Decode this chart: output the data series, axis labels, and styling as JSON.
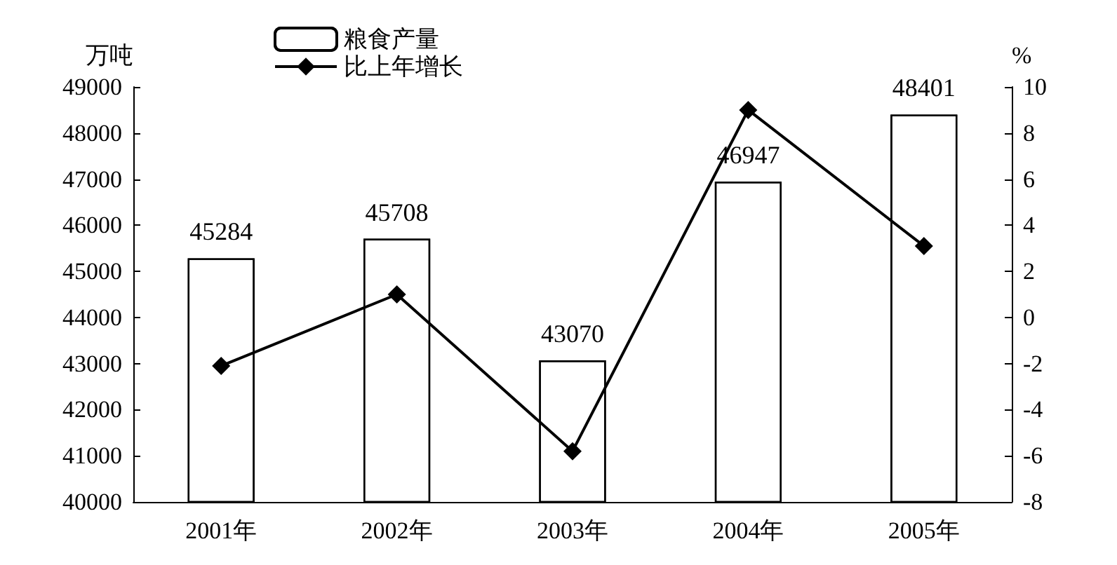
{
  "chart_data": {
    "type": "bar",
    "categories": [
      "2001年",
      "2002年",
      "2003年",
      "2004年",
      "2005年"
    ],
    "ylabel": "万吨",
    "y2label": "%",
    "series": [
      {
        "name": "粮食产量",
        "color": "#ffffff",
        "values": [
          45284,
          45708,
          43070,
          46947,
          48401
        ],
        "value_labels": [
          "45284",
          "45708",
          "43070",
          "46947",
          "48401"
        ]
      },
      {
        "name": "比上年增长",
        "type": "line",
        "axis": "y2",
        "color": "#000000",
        "marker": "diamond",
        "line_style": "solid",
        "values": [
          -2.1,
          1.0,
          -5.8,
          9.0,
          3.1
        ]
      }
    ],
    "ylim": [
      40000,
      49000
    ],
    "yticks": [
      40000,
      41000,
      42000,
      43000,
      44000,
      45000,
      46000,
      47000,
      48000,
      49000
    ],
    "y2lim": [
      -8,
      10
    ],
    "y2ticks": [
      -8,
      -6,
      -4,
      -2,
      0,
      2,
      4,
      6,
      8,
      10
    ],
    "grid": false,
    "legend": "top left"
  }
}
